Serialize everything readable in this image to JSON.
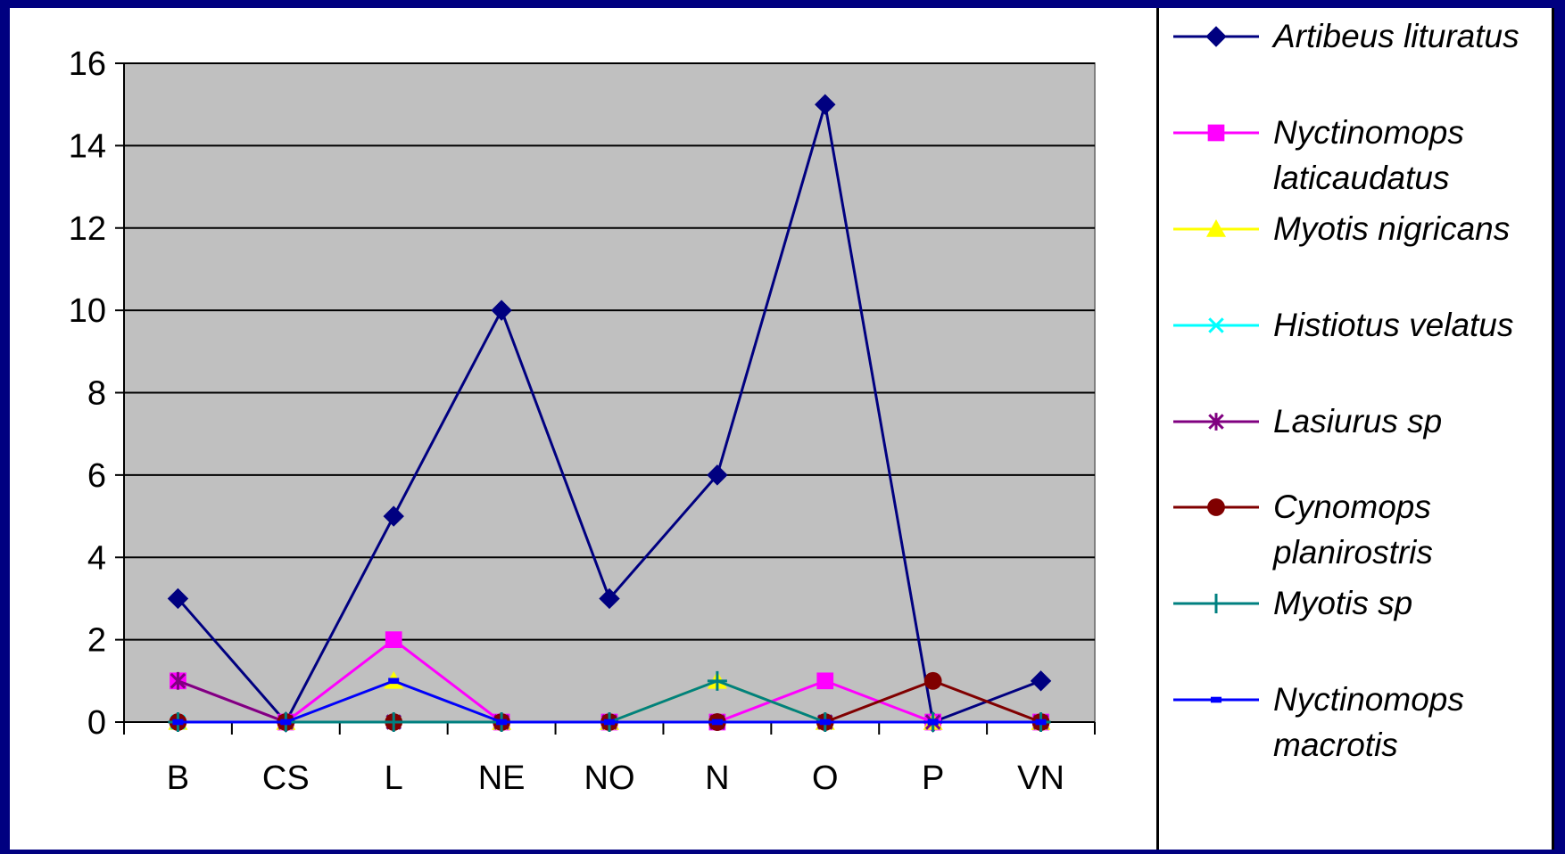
{
  "chart_data": {
    "type": "line",
    "title": "",
    "xlabel": "",
    "ylabel": "",
    "categories": [
      "B",
      "CS",
      "L",
      "NE",
      "NO",
      "N",
      "O",
      "P",
      "VN"
    ],
    "ylim": [
      0,
      16
    ],
    "yticks": [
      "0",
      "2",
      "4",
      "6",
      "8",
      "10",
      "12",
      "14",
      "16"
    ],
    "grid": true,
    "plot_background": "#c0c0c0",
    "legend_position": "right",
    "series": [
      {
        "name": "Artibeus lituratus",
        "color": "#000080",
        "marker": "diamond",
        "values": [
          3,
          0,
          5,
          10,
          3,
          6,
          15,
          0,
          1
        ]
      },
      {
        "name": "Nyctinomops laticaudatus",
        "color": "#ff00ff",
        "marker": "square",
        "values": [
          1,
          0,
          2,
          0,
          0,
          0,
          1,
          0,
          0
        ]
      },
      {
        "name": "Myotis nigricans",
        "color": "#ffff00",
        "marker": "triangle",
        "values": [
          0,
          0,
          1,
          0,
          0,
          1,
          0,
          0,
          0
        ]
      },
      {
        "name": "Histiotus velatus",
        "color": "#00ffff",
        "marker": "x",
        "values": [
          0,
          0,
          0,
          0,
          0,
          0,
          0,
          0,
          0
        ]
      },
      {
        "name": "Lasiurus sp",
        "color": "#800080",
        "marker": "star",
        "values": [
          1,
          0,
          0,
          0,
          0,
          0,
          0,
          0,
          0
        ]
      },
      {
        "name": "Cynomops planirostris",
        "color": "#800000",
        "marker": "circle",
        "values": [
          0,
          0,
          0,
          0,
          0,
          0,
          0,
          1,
          0
        ]
      },
      {
        "name": "Myotis sp",
        "color": "#008080",
        "marker": "plus",
        "values": [
          0,
          0,
          0,
          0,
          0,
          1,
          0,
          0,
          0
        ]
      },
      {
        "name": "Nyctinomops macrotis",
        "color": "#0000ff",
        "marker": "dash",
        "values": [
          0,
          0,
          1,
          0,
          0,
          0,
          0,
          0,
          0
        ]
      }
    ]
  }
}
